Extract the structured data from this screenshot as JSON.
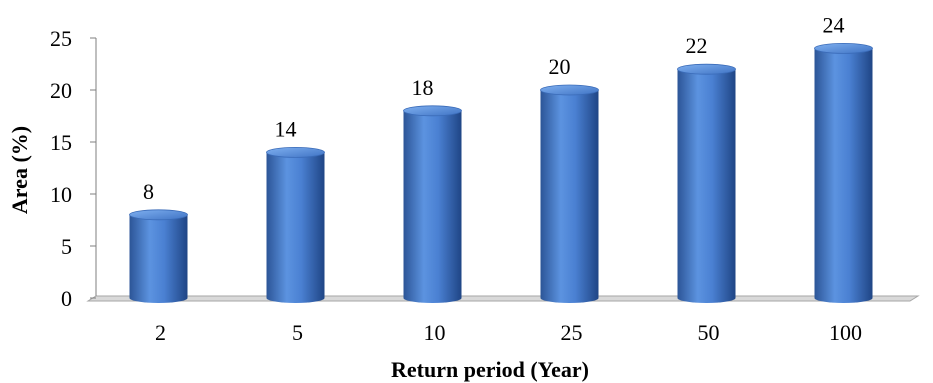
{
  "chart_data": {
    "type": "bar",
    "categories": [
      "2",
      "5",
      "10",
      "25",
      "50",
      "100"
    ],
    "values": [
      8,
      14,
      18,
      20,
      22,
      24
    ],
    "data_labels": [
      "8",
      "14",
      "18",
      "20",
      "22",
      "24"
    ],
    "xlabel": "Return period (Year)",
    "ylabel": "Area (%)",
    "ylim": [
      0,
      25
    ],
    "yticks": [
      0,
      5,
      10,
      15,
      20,
      25
    ],
    "ytick_labels": [
      "0",
      "5",
      "10",
      "15",
      "20",
      "25"
    ],
    "grid": false,
    "legend": "none",
    "style": "3d-cylinder",
    "bar_color": "#4f81bd"
  }
}
